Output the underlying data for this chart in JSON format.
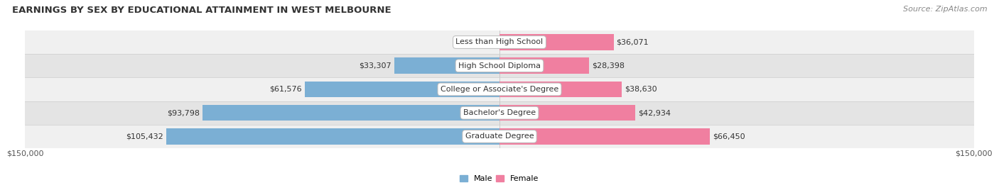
{
  "title": "EARNINGS BY SEX BY EDUCATIONAL ATTAINMENT IN WEST MELBOURNE",
  "source": "Source: ZipAtlas.com",
  "categories": [
    "Less than High School",
    "High School Diploma",
    "College or Associate's Degree",
    "Bachelor's Degree",
    "Graduate Degree"
  ],
  "male_values": [
    0,
    33307,
    61576,
    93798,
    105432
  ],
  "female_values": [
    36071,
    28398,
    38630,
    42934,
    66450
  ],
  "male_color": "#7bafd4",
  "female_color": "#f07fa0",
  "row_bg_even": "#f0f0f0",
  "row_bg_odd": "#e4e4e4",
  "xlim": 150000,
  "xlabel_left": "$150,000",
  "xlabel_right": "$150,000",
  "title_fontsize": 9.5,
  "source_fontsize": 8,
  "label_fontsize": 8,
  "value_fontsize": 8,
  "legend_male": "Male",
  "legend_female": "Female",
  "bar_height": 0.68
}
